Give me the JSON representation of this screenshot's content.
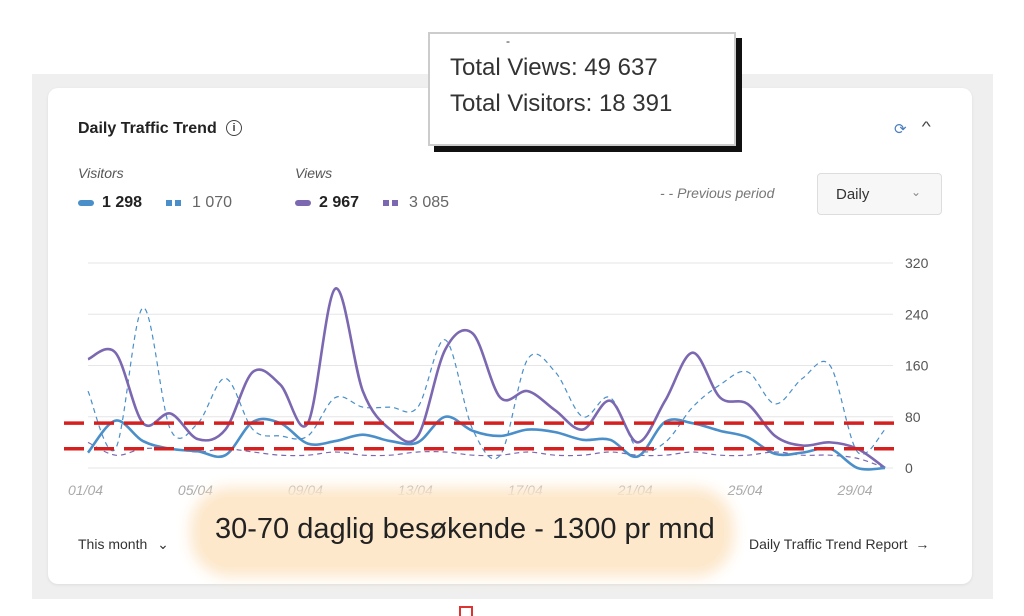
{
  "card": {
    "title": "Daily Traffic Trend",
    "info_icon": "info-icon",
    "refresh_icon": "refresh-icon",
    "collapse_icon": "chevron-up-icon"
  },
  "legend": {
    "visitors_label": "Visitors",
    "views_label": "Views",
    "visitors_current": "1 298",
    "visitors_previous": "1 070",
    "views_current": "2 967",
    "views_previous": "3 085",
    "previous_period_label": "- - Previous period"
  },
  "controls": {
    "period_select": "Daily",
    "range_label": "This month",
    "report_link": "Daily Traffic Trend Report"
  },
  "tooltip": {
    "dash": "-",
    "total_views": "Total Views: 49 637",
    "total_visitors": "Total Visitors: 18 391"
  },
  "annotation": "30-70 daglig besøkende - 1300 pr mnd",
  "colors": {
    "visitors": "#4a8fc9",
    "views": "#7b68b1",
    "grid": "#e6e6e6",
    "annotation_dash": "#d62020"
  },
  "chart_data": {
    "type": "line",
    "x": [
      "01/04",
      "02/04",
      "03/04",
      "04/04",
      "05/04",
      "06/04",
      "07/04",
      "08/04",
      "09/04",
      "10/04",
      "11/04",
      "12/04",
      "13/04",
      "14/04",
      "15/04",
      "16/04",
      "17/04",
      "18/04",
      "19/04",
      "20/04",
      "21/04",
      "22/04",
      "23/04",
      "24/04",
      "25/04",
      "26/04",
      "27/04",
      "28/04",
      "29/04",
      "30/04"
    ],
    "x_tick_labels": [
      "01/04",
      "05/04",
      "09/04",
      "13/04",
      "17/04",
      "21/04",
      "25/04",
      "29/04"
    ],
    "y_ticks": [
      "0",
      "80",
      "160",
      "240",
      "320"
    ],
    "ylim": [
      0,
      320
    ],
    "series": [
      {
        "name": "Visitors",
        "style": "solid",
        "color": "#4a8fc9",
        "values": [
          24,
          74,
          42,
          30,
          26,
          20,
          72,
          70,
          38,
          42,
          52,
          42,
          40,
          80,
          58,
          50,
          60,
          56,
          44,
          44,
          18,
          72,
          70,
          58,
          48,
          22,
          24,
          30,
          0,
          0
        ]
      },
      {
        "name": "Visitors",
        "style": "dashed",
        "color": "#4a8fc9",
        "values": [
          120,
          30,
          250,
          60,
          70,
          140,
          60,
          50,
          50,
          110,
          95,
          95,
          95,
          200,
          60,
          20,
          170,
          150,
          80,
          110,
          30,
          40,
          95,
          130,
          150,
          100,
          140,
          160,
          25,
          60
        ]
      },
      {
        "name": "Views",
        "style": "solid",
        "color": "#7b68b1",
        "values": [
          170,
          180,
          70,
          85,
          45,
          60,
          150,
          130,
          70,
          280,
          120,
          60,
          50,
          185,
          210,
          110,
          120,
          90,
          60,
          105,
          40,
          105,
          180,
          110,
          100,
          50,
          35,
          40,
          30,
          0
        ]
      },
      {
        "name": "Views",
        "style": "dashed",
        "color": "#7b68b1",
        "values": [
          40,
          20,
          30,
          30,
          25,
          30,
          25,
          20,
          20,
          25,
          20,
          20,
          25,
          25,
          20,
          20,
          25,
          20,
          20,
          25,
          20,
          20,
          25,
          20,
          20,
          25,
          20,
          20,
          15,
          0
        ]
      }
    ],
    "annotation_lines": [
      70,
      30
    ]
  }
}
